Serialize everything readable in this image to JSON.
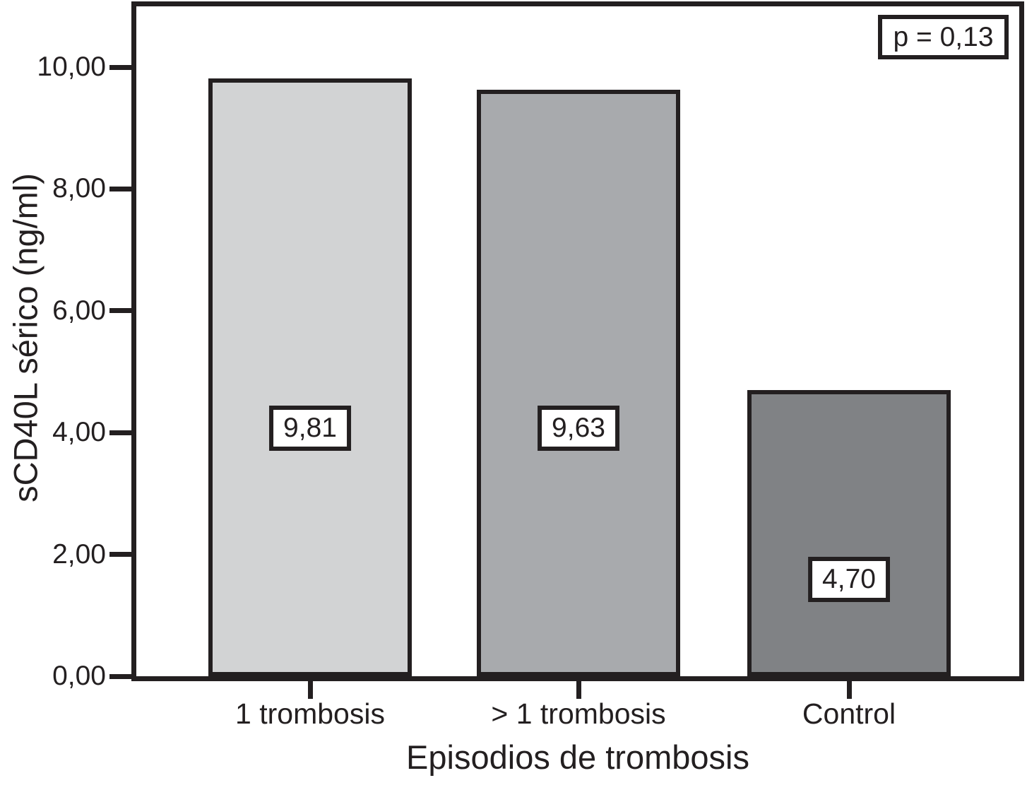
{
  "chart_data": {
    "type": "bar",
    "categories": [
      "1 trombosis",
      "> 1 trombosis",
      "Control"
    ],
    "values": [
      9.81,
      9.63,
      4.7
    ],
    "value_labels": [
      "9,81",
      "9,63",
      "4,70"
    ],
    "bar_colors": [
      "#d2d3d4",
      "#a8aaad",
      "#808285"
    ],
    "title": "",
    "xlabel": "Episodios de trombosis",
    "ylabel": "sCD40L sérico (ng/ml)",
    "yticks": [
      0,
      2,
      4,
      6,
      8,
      10
    ],
    "ytick_labels": [
      "0,00",
      "2,00",
      "4,00",
      "6,00",
      "8,00",
      "10,00"
    ],
    "ylim": [
      0,
      11
    ],
    "annotation": "p = 0,13",
    "grid": false,
    "legend_position": "none"
  },
  "colors": {
    "axis": "#231f20",
    "text": "#231f20",
    "background": "#ffffff",
    "value_box_background": "#ffffff"
  }
}
